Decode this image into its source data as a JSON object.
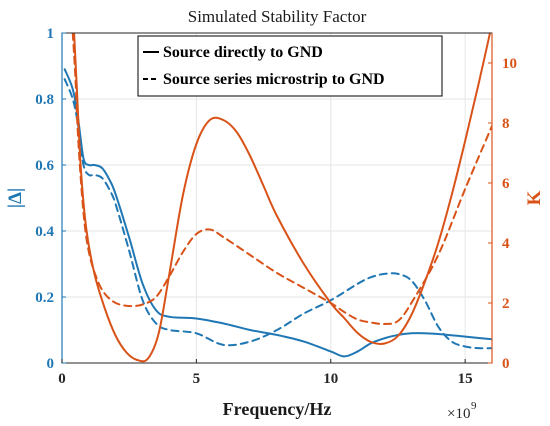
{
  "chart_data": {
    "type": "line",
    "title": "Simulated Stability Factor",
    "xlabel": "Frequency/Hz",
    "x_multiplier": "×10",
    "x_multiplier_exponent": "9",
    "ylabel_left": "|Δ|",
    "ylabel_right": "K",
    "xlim": [
      0,
      16
    ],
    "ylim_left": [
      0,
      1
    ],
    "ylim_right": [
      0,
      11
    ],
    "xticks": [
      "0",
      "5",
      "10",
      "15"
    ],
    "yticks_left": [
      "0",
      "0.2",
      "0.4",
      "0.6",
      "0.8",
      "1"
    ],
    "yticks_right": [
      "0",
      "2",
      "4",
      "6",
      "8",
      "10"
    ],
    "grid": true,
    "legend_position": "top-center",
    "legend": [
      {
        "label": "Source directly to GND",
        "style": "solid"
      },
      {
        "label": "Source series microstrip to GND",
        "style": "dashed"
      }
    ],
    "colors": {
      "left_axis": "#1f77b4",
      "right_axis": "#d95319",
      "grid": "#e6e6e6"
    },
    "series": [
      {
        "axis": "left",
        "style": "solid",
        "color": "#1f77b4",
        "x": [
          0.1,
          0.4,
          0.6,
          0.8,
          1.0,
          1.2,
          1.5,
          1.8,
          2.0,
          2.5,
          3.0,
          3.5,
          4.0,
          5.0,
          6.0,
          7.0,
          8.0,
          9.0,
          10.0,
          10.5,
          11.0,
          11.5,
          12.0,
          12.5,
          13.0,
          13.5,
          14.0,
          15.0,
          16.0
        ],
        "y": [
          0.89,
          0.83,
          0.74,
          0.62,
          0.6,
          0.6,
          0.59,
          0.55,
          0.51,
          0.38,
          0.24,
          0.16,
          0.14,
          0.135,
          0.12,
          0.1,
          0.085,
          0.065,
          0.035,
          0.02,
          0.035,
          0.06,
          0.075,
          0.085,
          0.09,
          0.09,
          0.088,
          0.08,
          0.072
        ]
      },
      {
        "axis": "left",
        "style": "dashed",
        "color": "#1f77b4",
        "x": [
          0.1,
          0.4,
          0.6,
          0.8,
          1.0,
          1.2,
          1.5,
          1.8,
          2.0,
          2.5,
          3.0,
          3.5,
          4.0,
          5.0,
          6.0,
          7.0,
          8.0,
          9.0,
          10.0,
          11.0,
          11.5,
          12.0,
          12.5,
          13.0,
          13.5,
          14.0,
          14.5,
          15.0,
          15.5,
          16.0
        ],
        "y": [
          0.86,
          0.8,
          0.72,
          0.6,
          0.57,
          0.57,
          0.56,
          0.52,
          0.48,
          0.34,
          0.19,
          0.12,
          0.1,
          0.09,
          0.055,
          0.065,
          0.1,
          0.15,
          0.19,
          0.24,
          0.26,
          0.27,
          0.27,
          0.25,
          0.19,
          0.11,
          0.065,
          0.05,
          0.045,
          0.045
        ]
      },
      {
        "axis": "right",
        "style": "solid",
        "color": "#d95319",
        "x": [
          0.45,
          0.55,
          0.7,
          0.9,
          1.2,
          1.6,
          2.0,
          2.4,
          2.8,
          3.2,
          3.6,
          4.0,
          4.5,
          5.0,
          5.5,
          6.0,
          6.5,
          7.0,
          7.5,
          8.0,
          9.0,
          10.0,
          10.5,
          11.0,
          11.5,
          12.0,
          12.5,
          13.0,
          13.5,
          14.0,
          14.5,
          15.0,
          15.5,
          16.0
        ],
        "y": [
          11,
          9.2,
          6.5,
          4.5,
          3.0,
          1.8,
          0.9,
          0.35,
          0.1,
          0.15,
          1.0,
          3.0,
          5.6,
          7.3,
          8.1,
          8.1,
          7.7,
          6.9,
          5.9,
          4.9,
          3.3,
          2.0,
          1.5,
          1.0,
          0.7,
          0.65,
          0.9,
          1.6,
          2.7,
          4.0,
          5.6,
          7.4,
          9.3,
          11.3
        ]
      },
      {
        "axis": "right",
        "style": "dashed",
        "color": "#d95319",
        "x": [
          0.4,
          0.5,
          0.6,
          0.8,
          1.0,
          1.3,
          1.6,
          2.0,
          2.5,
          3.0,
          3.5,
          4.0,
          4.5,
          5.0,
          5.5,
          6.0,
          7.0,
          8.0,
          9.0,
          10.0,
          10.5,
          11.0,
          11.5,
          12.0,
          12.5,
          13.0,
          14.0,
          15.0,
          16.0
        ],
        "y": [
          11,
          9.5,
          7.5,
          5.0,
          3.7,
          2.8,
          2.3,
          2.0,
          1.9,
          1.95,
          2.2,
          2.9,
          3.7,
          4.3,
          4.45,
          4.2,
          3.6,
          3.0,
          2.5,
          2.0,
          1.7,
          1.45,
          1.35,
          1.3,
          1.4,
          2.0,
          3.6,
          5.8,
          7.9
        ]
      }
    ]
  }
}
